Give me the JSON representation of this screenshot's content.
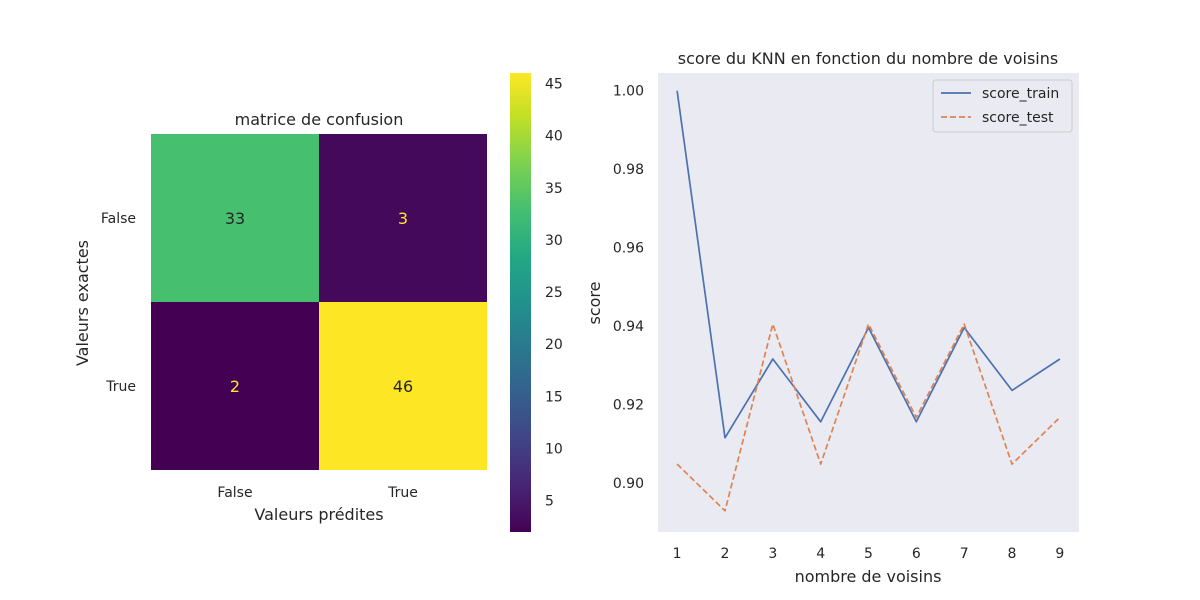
{
  "chart_data": [
    {
      "type": "heatmap",
      "title": "matrice de confusion",
      "xlabel": "Valeurs prédites",
      "ylabel": "Valeurs exactes",
      "x_categories": [
        "False",
        "True"
      ],
      "y_categories": [
        "False",
        "True"
      ],
      "values": [
        [
          33,
          3
        ],
        [
          2,
          46
        ]
      ],
      "colorbar": {
        "min": 2,
        "max": 46,
        "ticks": [
          5,
          10,
          15,
          20,
          25,
          30,
          35,
          40,
          45
        ],
        "colormap": "viridis"
      }
    },
    {
      "type": "line",
      "title": "score du KNN en fonction du nombre de voisins",
      "xlabel": "nombre de voisins",
      "ylabel": "score",
      "x": [
        1,
        2,
        3,
        4,
        5,
        6,
        7,
        8,
        9
      ],
      "series": [
        {
          "name": "score_train",
          "color": "#4c72b0",
          "dash": "solid",
          "values": [
            1.0,
            0.9115,
            0.9316,
            0.9156,
            0.9396,
            0.9156,
            0.9396,
            0.9236,
            0.9316
          ]
        },
        {
          "name": "score_test",
          "color": "#dd8452",
          "dash": "dashed",
          "values": [
            0.9048,
            0.8929,
            0.9405,
            0.9048,
            0.9405,
            0.9167,
            0.9405,
            0.9048,
            0.9167
          ]
        }
      ],
      "xlim": [
        0.6,
        9.4
      ],
      "ylim": [
        0.8875,
        1.0045
      ],
      "yticks": [
        0.9,
        0.92,
        0.94,
        0.96,
        0.98,
        1.0
      ],
      "xticks": [
        1,
        2,
        3,
        4,
        5,
        6,
        7,
        8,
        9
      ],
      "background": "#eaeaf2",
      "grid": false,
      "legend_position": "top-right"
    }
  ]
}
